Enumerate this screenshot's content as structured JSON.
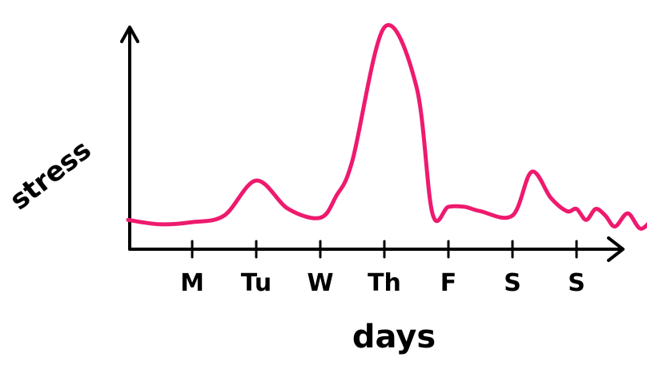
{
  "chart_data": {
    "type": "line",
    "title": "",
    "xlabel": "days",
    "ylabel": "stress",
    "categories": [
      "M",
      "Tu",
      "W",
      "Th",
      "F",
      "S",
      "S"
    ],
    "x": [
      -1,
      -0.5,
      0,
      0.5,
      1,
      1.5,
      2,
      2.25,
      2.5,
      3,
      3.5,
      3.75,
      4,
      4.25,
      4.5,
      5,
      5.3,
      5.6,
      5.85,
      6,
      6.15,
      6.3,
      6.45,
      6.6,
      6.8,
      7,
      7.2
    ],
    "series": [
      {
        "values": [
          9,
          7,
          8,
          11,
          27,
          14,
          10,
          20,
          36,
          97,
          70,
          12,
          15,
          15,
          13,
          11,
          31,
          19,
          13,
          14,
          9,
          14,
          11,
          6,
          12,
          5,
          10
        ]
      }
    ],
    "ylim": [
      0,
      100
    ],
    "grid": false,
    "legend": "none",
    "colors": {
      "line": "#ee1a6e",
      "axis": "#000000"
    }
  }
}
